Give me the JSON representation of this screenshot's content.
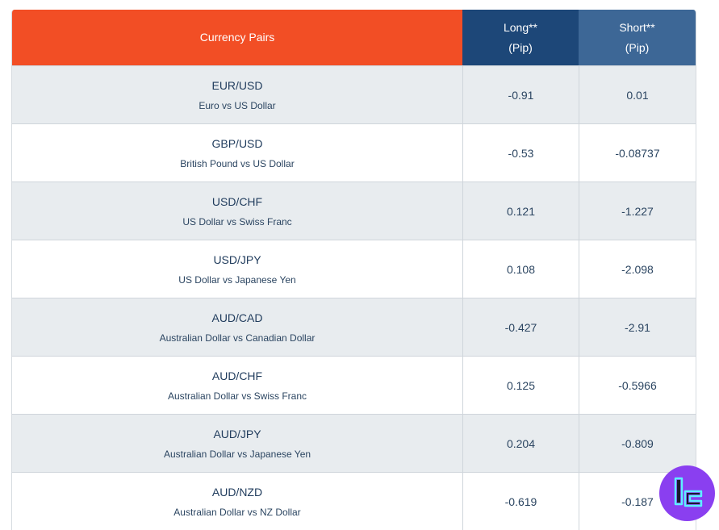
{
  "header": {
    "pairs_label": "Currency Pairs",
    "long_label": "Long**",
    "long_unit": "(Pip)",
    "short_label": "Short**",
    "short_unit": "(Pip)"
  },
  "rows": [
    {
      "pair": "EUR/USD",
      "desc": "Euro vs US Dollar",
      "long": "-0.91",
      "short": "0.01"
    },
    {
      "pair": "GBP/USD",
      "desc": "British Pound vs US Dollar",
      "long": "-0.53",
      "short": "-0.08737"
    },
    {
      "pair": "USD/CHF",
      "desc": "US Dollar vs Swiss Franc",
      "long": "0.121",
      "short": "-1.227"
    },
    {
      "pair": "USD/JPY",
      "desc": "US Dollar vs Japanese Yen",
      "long": "0.108",
      "short": "-2.098"
    },
    {
      "pair": "AUD/CAD",
      "desc": "Australian Dollar vs Canadian Dollar",
      "long": "-0.427",
      "short": "-2.91"
    },
    {
      "pair": "AUD/CHF",
      "desc": "Australian Dollar vs Swiss Franc",
      "long": "0.125",
      "short": "-0.5966"
    },
    {
      "pair": "AUD/JPY",
      "desc": "Australian Dollar vs Japanese Yen",
      "long": "0.204",
      "short": "-0.809"
    },
    {
      "pair": "AUD/NZD",
      "desc": "Australian Dollar vs NZ Dollar",
      "long": "-0.619",
      "short": "-0.187"
    }
  ],
  "colors": {
    "pairs_header": "#f24e25",
    "long_header": "#1d4778",
    "short_header": "#3d6796",
    "logo": "#8a3ff0"
  },
  "logo_icon": "tc-brand-logo-icon"
}
